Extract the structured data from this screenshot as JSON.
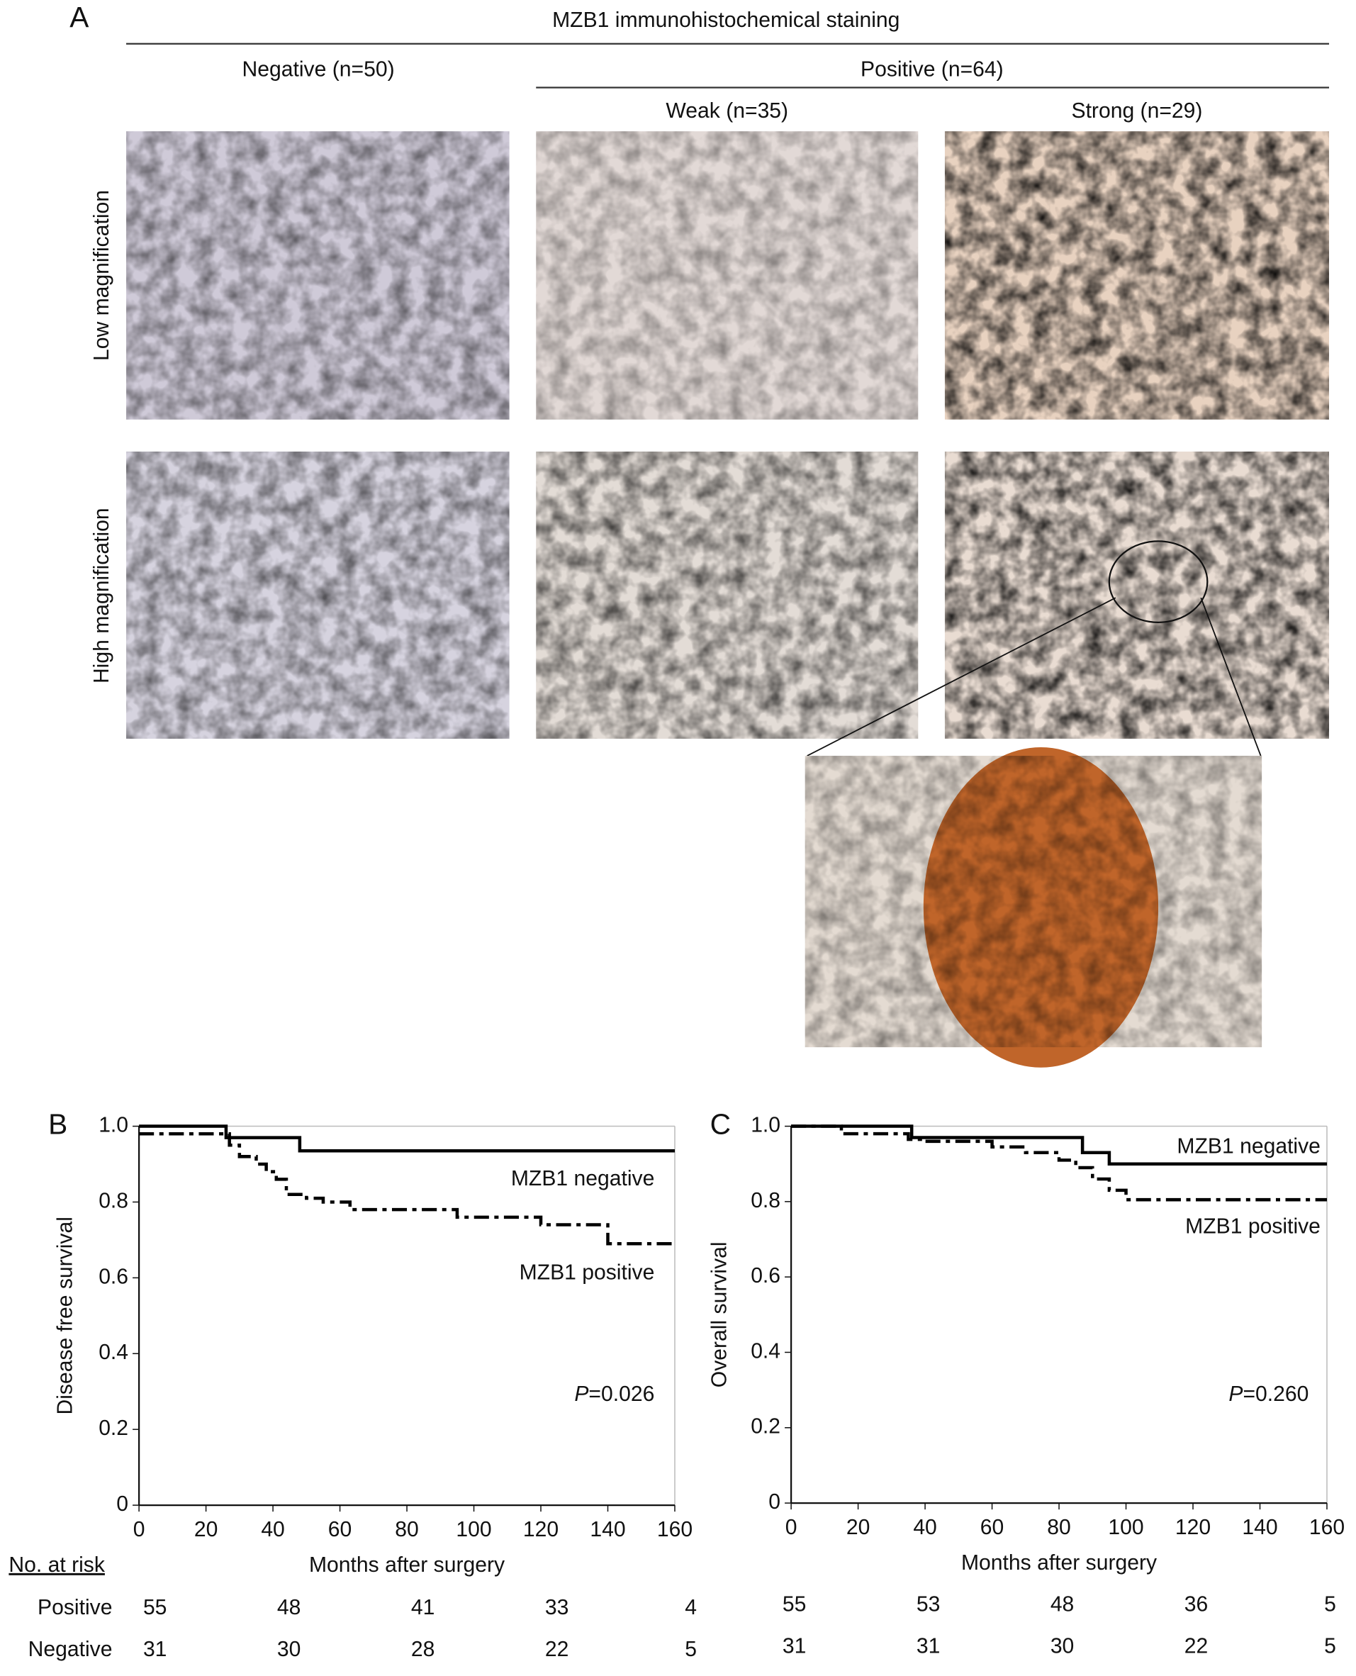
{
  "panel_a": {
    "label": "A",
    "title": "MZB1 immunohistochemical staining",
    "negative": "Negative (n=50)",
    "positive": "Positive (n=64)",
    "weak": "Weak (n=35)",
    "strong": "Strong (n=29)",
    "rows": [
      "Low magnification",
      "High magnification"
    ]
  },
  "chart_data": [
    {
      "type": "step",
      "label": "B",
      "ylabel": "Disease free survival",
      "xlabel": "Months after surgery",
      "xlim": [
        0,
        160
      ],
      "xticks": [
        0,
        20,
        40,
        60,
        80,
        100,
        120,
        140,
        160
      ],
      "ylim": [
        0,
        1
      ],
      "yticks": [
        0,
        {
          "value": 0.2,
          "label": "0.2"
        },
        {
          "value": 0.4,
          "label": "0.4"
        },
        {
          "value": 0.6,
          "label": "0.6"
        },
        {
          "value": 0.8,
          "label": "0.8"
        },
        {
          "value": 1,
          "label": "1.0"
        }
      ],
      "series": [
        {
          "name": "MZB1 negative",
          "color": "#000000",
          "dash": "solid",
          "x": [
            0,
            26,
            48,
            160
          ],
          "values": [
            1.0,
            0.97,
            0.935,
            0.935
          ]
        },
        {
          "name": "MZB1 positive",
          "color": "#000000",
          "dash": "dashdot",
          "x": [
            0,
            27,
            30,
            35,
            38,
            41,
            44,
            50,
            55,
            63,
            95,
            120,
            140,
            160
          ],
          "values": [
            0.98,
            0.95,
            0.92,
            0.9,
            0.88,
            0.86,
            0.82,
            0.81,
            0.8,
            0.78,
            0.76,
            0.74,
            0.69,
            0.69
          ]
        }
      ],
      "p_italic": "P",
      "p_text": "=0.026",
      "risk_title": "No. at risk",
      "risk_rows": [
        {
          "name": "Positive",
          "values": [
            55,
            48,
            41,
            33,
            4
          ]
        },
        {
          "name": "Negative",
          "values": [
            31,
            30,
            28,
            22,
            5
          ]
        }
      ]
    },
    {
      "type": "step",
      "label": "C",
      "ylabel": "Overall survival",
      "xlabel": "Months after surgery",
      "xlim": [
        0,
        160
      ],
      "xticks": [
        0,
        20,
        40,
        60,
        80,
        100,
        120,
        140,
        160
      ],
      "ylim": [
        0,
        1
      ],
      "yticks": [
        0,
        {
          "value": 0.2,
          "label": "0.2"
        },
        {
          "value": 0.4,
          "label": "0.4"
        },
        {
          "value": 0.6,
          "label": "0.6"
        },
        {
          "value": 0.8,
          "label": "0.8"
        },
        {
          "value": 1,
          "label": "1.0"
        }
      ],
      "series": [
        {
          "name": "MZB1 negative",
          "color": "#000000",
          "dash": "solid",
          "x": [
            0,
            36,
            87,
            95,
            160
          ],
          "values": [
            1.0,
            0.97,
            0.93,
            0.9,
            0.9
          ]
        },
        {
          "name": "MZB1 positive",
          "color": "#000000",
          "dash": "dashdot",
          "x": [
            0,
            15,
            35,
            40,
            60,
            70,
            80,
            85,
            90,
            95,
            100,
            160
          ],
          "values": [
            1.0,
            0.98,
            0.965,
            0.96,
            0.945,
            0.93,
            0.91,
            0.89,
            0.86,
            0.83,
            0.805,
            0.805
          ]
        }
      ],
      "p_italic": "P",
      "p_text": "=0.260",
      "risk_rows": [
        {
          "values": [
            55,
            53,
            48,
            36,
            5
          ]
        },
        {
          "values": [
            31,
            31,
            30,
            22,
            5
          ]
        }
      ]
    }
  ]
}
